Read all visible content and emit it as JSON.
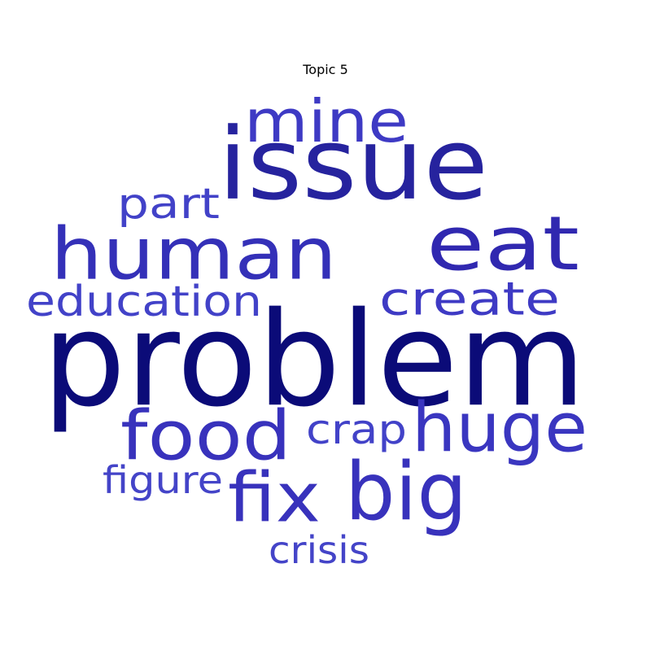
{
  "title": "Topic 5",
  "words": [
    {
      "text": "problem",
      "weight": 1.0,
      "color": "#0b0b78"
    },
    {
      "text": "issue",
      "weight": 0.7,
      "color": "#26239e"
    },
    {
      "text": "eat",
      "weight": 0.6,
      "color": "#3028b0"
    },
    {
      "text": "human",
      "weight": 0.58,
      "color": "#3430b8"
    },
    {
      "text": "fix",
      "weight": 0.56,
      "color": "#3832bc"
    },
    {
      "text": "big",
      "weight": 0.55,
      "color": "#3832bc"
    },
    {
      "text": "food",
      "weight": 0.52,
      "color": "#3832bc"
    },
    {
      "text": "huge",
      "weight": 0.5,
      "color": "#3a36c0"
    },
    {
      "text": "mine",
      "weight": 0.45,
      "color": "#3e3ac4"
    },
    {
      "text": "create",
      "weight": 0.42,
      "color": "#3e3ac4"
    },
    {
      "text": "part",
      "weight": 0.36,
      "color": "#4242c8"
    },
    {
      "text": "education",
      "weight": 0.34,
      "color": "#4242c8"
    },
    {
      "text": "crap",
      "weight": 0.32,
      "color": "#4242c8"
    },
    {
      "text": "figure",
      "weight": 0.3,
      "color": "#4444c8"
    },
    {
      "text": "crisis",
      "weight": 0.3,
      "color": "#4444c8"
    }
  ]
}
